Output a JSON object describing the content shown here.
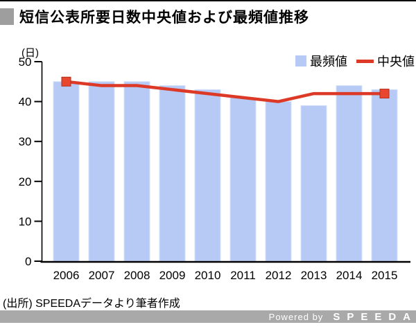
{
  "page": {
    "title_text": "短信公表所要日数中央値および最頻値推移"
  },
  "chart_data": {
    "type": "bar+line",
    "categories": [
      "2006",
      "2007",
      "2008",
      "2009",
      "2010",
      "2011",
      "2012",
      "2013",
      "2014",
      "2015"
    ],
    "series": [
      {
        "name": "最頻値",
        "type": "bar",
        "color": "#b6caf5",
        "edge_color": "#d6e1fa",
        "values": [
          45,
          45,
          45,
          44,
          43,
          41,
          40,
          39,
          44,
          43
        ]
      },
      {
        "name": "中央値",
        "type": "line",
        "color": "#dc3a26",
        "marker_color": "#e8462f",
        "values": [
          45,
          44,
          44,
          43,
          42,
          41,
          40,
          42,
          42,
          42
        ],
        "markers_on": "first and last points only"
      }
    ],
    "ylabel": "(日)",
    "ylim": [
      0,
      50
    ],
    "ytick_interval": 10,
    "grid": false,
    "legend_position": "top-right"
  },
  "footer": {
    "source": "(出所) SPEEDAデータより筆者作成",
    "powered_by": "Powered by",
    "brand_letters": "SPEEDA"
  }
}
